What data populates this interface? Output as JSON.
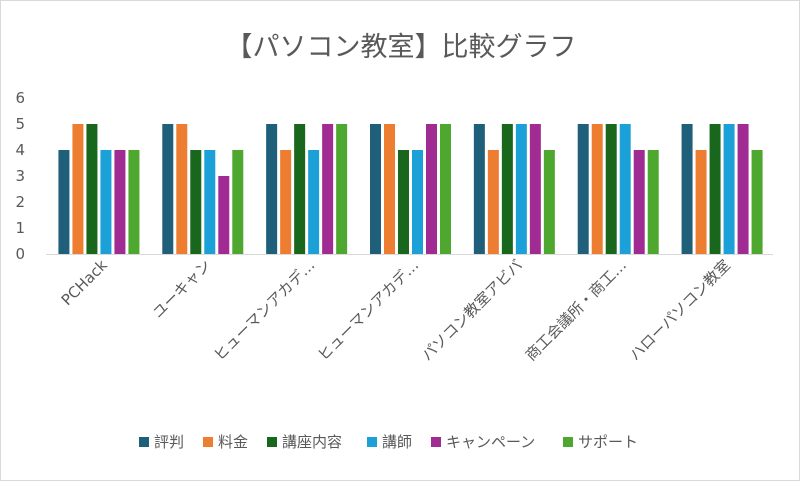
{
  "chart_data": {
    "type": "bar",
    "title": "【パソコン教室】比較グラフ",
    "categories": [
      "PCHack",
      "ユーキャン",
      "ヒューマンアカデ…",
      "ヒューマンアカデ…",
      "パソコン教室アビバ",
      "商工会議所・商工…",
      "ハローパソコン教室"
    ],
    "series": [
      {
        "name": "評判",
        "color": "#1f5f7a",
        "values": [
          4,
          5,
          5,
          5,
          5,
          5,
          5
        ]
      },
      {
        "name": "料金",
        "color": "#ed7d31",
        "values": [
          5,
          5,
          4,
          5,
          4,
          5,
          4
        ]
      },
      {
        "name": "講座内容",
        "color": "#19661d",
        "values": [
          5,
          4,
          5,
          4,
          5,
          5,
          5
        ]
      },
      {
        "name": "講師",
        "color": "#1ba1d8",
        "values": [
          4,
          4,
          4,
          4,
          5,
          5,
          5
        ]
      },
      {
        "name": "キャンペーン",
        "color": "#a02b93",
        "values": [
          4,
          3,
          5,
          5,
          5,
          4,
          5
        ]
      },
      {
        "name": "サポート",
        "color": "#4ea72e",
        "values": [
          4,
          4,
          5,
          5,
          4,
          4,
          4
        ]
      }
    ],
    "yticks": [
      0,
      1,
      2,
      3,
      4,
      5,
      6
    ],
    "ylim": [
      0,
      6
    ],
    "xlabel": "",
    "ylabel": "",
    "grid": false,
    "legend_position": "bottom"
  }
}
